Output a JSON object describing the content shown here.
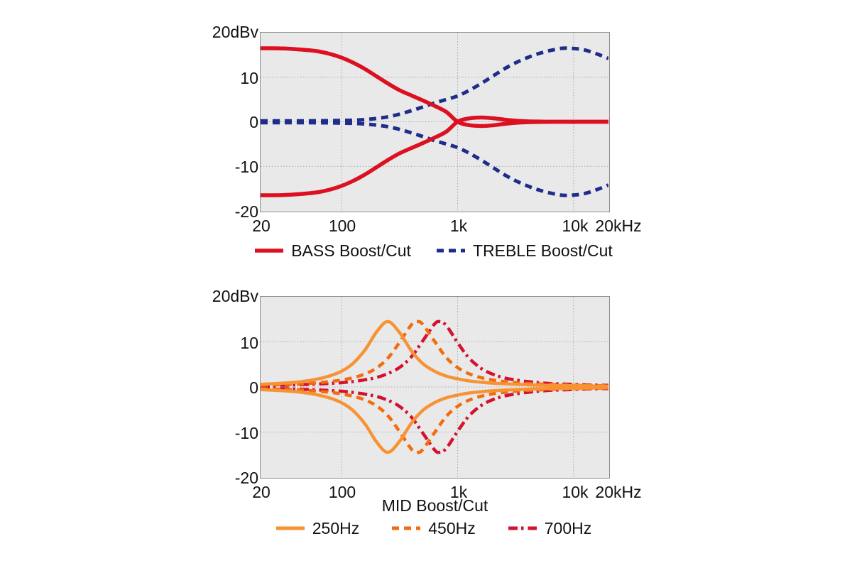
{
  "chart_data": [
    {
      "type": "line",
      "title": "",
      "xlabel": "",
      "y_top_label": "20dBv",
      "y_tick_labels": [
        "10",
        "0",
        "-10",
        "-20"
      ],
      "y_tick_values": [
        20,
        10,
        0,
        -10,
        -20
      ],
      "x_tick_labels": [
        "20",
        "100",
        "1k",
        "10k",
        "20kHz"
      ],
      "x_tick_values": [
        20,
        100,
        1000,
        10000,
        20000
      ],
      "x_scale": "log",
      "xlim": [
        20,
        20000
      ],
      "ylim": [
        -20,
        20
      ],
      "x_gridlines": [
        100,
        1000,
        10000
      ],
      "y_gridlines": [
        10,
        0,
        -10
      ],
      "grid": "dotted",
      "legend_position": "bottom",
      "series": [
        {
          "name": "BASS Boost/Cut",
          "color": "#dc1020",
          "style": "solid",
          "width": 5.5,
          "mirrored": true,
          "points": [
            [
              20,
              16.5
            ],
            [
              25,
              16.5
            ],
            [
              31.5,
              16.45
            ],
            [
              40,
              16.3
            ],
            [
              50,
              16.1
            ],
            [
              63,
              15.8
            ],
            [
              80,
              15.2
            ],
            [
              100,
              14.4
            ],
            [
              125,
              13.3
            ],
            [
              160,
              11.8
            ],
            [
              200,
              10.2
            ],
            [
              250,
              8.6
            ],
            [
              315,
              7.1
            ],
            [
              400,
              5.9
            ],
            [
              500,
              4.8
            ],
            [
              630,
              3.6
            ],
            [
              800,
              2.2
            ],
            [
              1000,
              0
            ],
            [
              1250,
              -0.75
            ],
            [
              1600,
              -0.95
            ],
            [
              2000,
              -0.8
            ],
            [
              2500,
              -0.5
            ],
            [
              3150,
              -0.25
            ],
            [
              4000,
              -0.1
            ],
            [
              5000,
              -0.05
            ],
            [
              6300,
              0
            ],
            [
              8000,
              0
            ],
            [
              10000,
              0
            ],
            [
              12500,
              0
            ],
            [
              16000,
              0
            ],
            [
              20000,
              0
            ]
          ]
        },
        {
          "name": "TREBLE Boost/Cut",
          "color": "#1f2d8a",
          "style": "dashed",
          "width": 5,
          "mirrored": true,
          "points": [
            [
              20,
              0.2
            ],
            [
              31.5,
              0.2
            ],
            [
              50,
              0.2
            ],
            [
              80,
              0.25
            ],
            [
              100,
              0.3
            ],
            [
              125,
              0.35
            ],
            [
              160,
              0.5
            ],
            [
              200,
              0.75
            ],
            [
              250,
              1.1
            ],
            [
              315,
              1.7
            ],
            [
              400,
              2.5
            ],
            [
              500,
              3.3
            ],
            [
              630,
              4.2
            ],
            [
              800,
              5.0
            ],
            [
              1000,
              5.8
            ],
            [
              1250,
              7.0
            ],
            [
              1600,
              8.6
            ],
            [
              2000,
              10.2
            ],
            [
              2500,
              11.8
            ],
            [
              3150,
              13.2
            ],
            [
              4000,
              14.4
            ],
            [
              5000,
              15.3
            ],
            [
              6300,
              16.0
            ],
            [
              8000,
              16.5
            ],
            [
              10000,
              16.45
            ],
            [
              12500,
              16.1
            ],
            [
              16000,
              15.2
            ],
            [
              20000,
              14.2
            ]
          ]
        }
      ]
    },
    {
      "type": "line",
      "title": "",
      "xlabel": "MID Boost/Cut",
      "y_top_label": "20dBv",
      "y_tick_labels": [
        "10",
        "0",
        "-10",
        "-20"
      ],
      "y_tick_values": [
        20,
        10,
        0,
        -10,
        -20
      ],
      "x_tick_labels": [
        "20",
        "100",
        "1k",
        "10k",
        "20kHz"
      ],
      "x_tick_values": [
        20,
        100,
        1000,
        10000,
        20000
      ],
      "x_scale": "log",
      "xlim": [
        20,
        20000
      ],
      "ylim": [
        -20,
        20
      ],
      "x_gridlines": [
        100,
        1000,
        10000
      ],
      "y_gridlines": [
        10,
        0,
        -10
      ],
      "grid": "dotted",
      "legend_position": "bottom",
      "series": [
        {
          "name": "250Hz",
          "color": "#f79335",
          "style": "solid",
          "width": 4.5,
          "mirrored": true,
          "points": [
            [
              20,
              0.6
            ],
            [
              25,
              0.7
            ],
            [
              31.5,
              0.85
            ],
            [
              40,
              1.05
            ],
            [
              50,
              1.35
            ],
            [
              63,
              1.8
            ],
            [
              80,
              2.5
            ],
            [
              100,
              3.5
            ],
            [
              125,
              5.2
            ],
            [
              160,
              8.3
            ],
            [
              200,
              12.2
            ],
            [
              250,
              14.5
            ],
            [
              315,
              12.1
            ],
            [
              400,
              8.0
            ],
            [
              500,
              5.2
            ],
            [
              630,
              3.5
            ],
            [
              800,
              2.4
            ],
            [
              1000,
              1.8
            ],
            [
              1250,
              1.35
            ],
            [
              1600,
              1.05
            ],
            [
              2000,
              0.85
            ],
            [
              2500,
              0.7
            ],
            [
              3150,
              0.6
            ],
            [
              4000,
              0.5
            ],
            [
              5000,
              0.4
            ],
            [
              6300,
              0.35
            ],
            [
              8000,
              0.3
            ],
            [
              10000,
              0.3
            ],
            [
              12500,
              0.25
            ],
            [
              16000,
              0.2
            ],
            [
              20000,
              0.2
            ]
          ]
        },
        {
          "name": "450Hz",
          "color": "#f26c0d",
          "style": "dashed",
          "width": 4.5,
          "mirrored": true,
          "points": [
            [
              20,
              0.4
            ],
            [
              31.5,
              0.55
            ],
            [
              50,
              0.75
            ],
            [
              80,
              1.2
            ],
            [
              100,
              1.55
            ],
            [
              125,
              2.05
            ],
            [
              160,
              2.9
            ],
            [
              200,
              4.2
            ],
            [
              250,
              6.35
            ],
            [
              315,
              9.85
            ],
            [
              400,
              13.8
            ],
            [
              450,
              14.5
            ],
            [
              500,
              13.9
            ],
            [
              630,
              10.2
            ],
            [
              800,
              6.5
            ],
            [
              1000,
              4.3
            ],
            [
              1250,
              2.95
            ],
            [
              1600,
              2.05
            ],
            [
              2000,
              1.55
            ],
            [
              2500,
              1.2
            ],
            [
              3150,
              0.95
            ],
            [
              4000,
              0.75
            ],
            [
              5000,
              0.65
            ],
            [
              6300,
              0.55
            ],
            [
              8000,
              0.45
            ],
            [
              10000,
              0.4
            ],
            [
              12500,
              0.35
            ],
            [
              16000,
              0.3
            ],
            [
              20000,
              0.25
            ]
          ]
        },
        {
          "name": "700Hz",
          "color": "#d2122f",
          "style": "dashdot",
          "width": 4.5,
          "mirrored": true,
          "points": [
            [
              20,
              0.3
            ],
            [
              31.5,
              0.4
            ],
            [
              50,
              0.55
            ],
            [
              80,
              0.8
            ],
            [
              100,
              0.95
            ],
            [
              125,
              1.2
            ],
            [
              160,
              1.6
            ],
            [
              200,
              2.1
            ],
            [
              250,
              2.95
            ],
            [
              315,
              4.3
            ],
            [
              400,
              6.7
            ],
            [
              500,
              10.2
            ],
            [
              630,
              13.9
            ],
            [
              700,
              14.5
            ],
            [
              800,
              13.6
            ],
            [
              1000,
              9.85
            ],
            [
              1250,
              6.45
            ],
            [
              1600,
              4.1
            ],
            [
              2000,
              2.85
            ],
            [
              2500,
              2.05
            ],
            [
              3150,
              1.55
            ],
            [
              4000,
              1.2
            ],
            [
              5000,
              0.95
            ],
            [
              6300,
              0.75
            ],
            [
              8000,
              0.65
            ],
            [
              10000,
              0.55
            ],
            [
              12500,
              0.45
            ],
            [
              16000,
              0.4
            ],
            [
              20000,
              0.35
            ]
          ]
        }
      ]
    }
  ]
}
